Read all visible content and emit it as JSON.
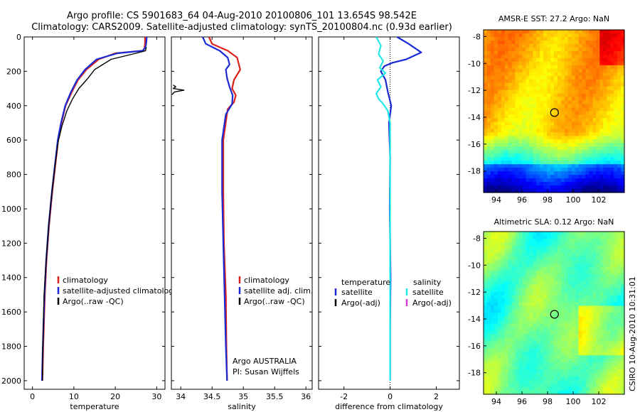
{
  "header": {
    "line1": "Argo profile: CS 5901683_64 04-Aug-2010 20100806_101 13.654S 98.542E",
    "line2": "Climatology: CARS2009. Satellite-adjusted climatology: synTS_20100804.nc (0.93d earlier)"
  },
  "side_label": "CSIRO 10-Aug-2010 10:31:01",
  "colors": {
    "climatology": "#e0211b",
    "satellite": "#1a2bd6",
    "argo": "#000000",
    "satellite_salinity": "#22e8e8",
    "argo_adj_salinity": "#d63cd6"
  },
  "chart_data": [
    {
      "id": "temperature",
      "type": "line",
      "xlabel": "temperature",
      "ylabel": "",
      "xlim": [
        -2,
        32
      ],
      "ylim": [
        2050,
        0
      ],
      "xticks": [
        0,
        10,
        20,
        30
      ],
      "yticks": [
        0,
        200,
        400,
        600,
        800,
        1000,
        1200,
        1400,
        1600,
        1800,
        2000
      ],
      "legend": {
        "placement": "bottom-right",
        "items": [
          "climatology",
          "satellite-adjusted climatology",
          "Argo(..raw -QC)"
        ]
      },
      "series": [
        {
          "name": "climatology",
          "color": "#e0211b",
          "x": [
            27.2,
            27.2,
            27.1,
            26.8,
            20.0,
            16.0,
            13.0,
            11.0,
            9.5,
            8.0,
            7.0,
            6.2,
            5.5,
            4.8,
            4.0,
            3.4,
            3.0,
            2.6,
            2.4
          ],
          "y": [
            0,
            30,
            60,
            80,
            95,
            130,
            190,
            250,
            320,
            400,
            500,
            600,
            750,
            900,
            1100,
            1300,
            1500,
            1800,
            2000
          ]
        },
        {
          "name": "satellite-adjusted climatology",
          "color": "#1a2bd6",
          "x": [
            27.6,
            27.5,
            27.3,
            26.6,
            20.5,
            15.5,
            12.7,
            10.8,
            9.3,
            7.9,
            6.9,
            6.1,
            5.4,
            4.7,
            3.9,
            3.3,
            2.9,
            2.5,
            2.3
          ],
          "y": [
            0,
            30,
            60,
            80,
            95,
            130,
            190,
            250,
            320,
            400,
            500,
            600,
            750,
            900,
            1100,
            1300,
            1500,
            1800,
            2000
          ]
        },
        {
          "name": "Argo(..raw -QC)",
          "color": "#000000",
          "x": [
            27.5,
            27.3,
            25.0,
            19.0,
            15.0,
            13.4,
            11.2,
            9.7,
            8.3,
            7.1,
            6.2,
            5.5,
            4.7,
            3.9,
            3.3,
            2.8,
            2.5,
            2.4
          ],
          "y": [
            60,
            80,
            95,
            130,
            190,
            240,
            300,
            360,
            430,
            520,
            610,
            740,
            900,
            1100,
            1300,
            1500,
            1800,
            2000
          ]
        }
      ]
    },
    {
      "id": "salinity",
      "type": "line",
      "xlabel": "salinity",
      "ylabel": "",
      "xlim": [
        33.85,
        36.1
      ],
      "ylim": [
        2050,
        0
      ],
      "xticks": [
        34,
        34.5,
        35,
        35.5,
        36
      ],
      "legend": {
        "placement": "bottom-right",
        "items": [
          "climatology",
          "satellite adj. clim.",
          "Argo(..raw -QC)"
        ]
      },
      "annotations": [
        "Argo AUSTRALIA",
        "PI: Susan Wijffels"
      ],
      "series": [
        {
          "name": "climatology",
          "color": "#e0211b",
          "x": [
            34.45,
            34.5,
            34.75,
            34.9,
            34.95,
            34.85,
            34.82,
            34.88,
            34.85,
            34.75,
            34.68,
            34.68,
            34.69,
            34.72,
            34.73,
            34.74
          ],
          "y": [
            0,
            40,
            80,
            120,
            190,
            250,
            300,
            340,
            380,
            420,
            600,
            900,
            1200,
            1500,
            1800,
            2000
          ]
        },
        {
          "name": "satellite adj. clim.",
          "color": "#1a2bd6",
          "x": [
            34.35,
            34.4,
            34.62,
            34.75,
            34.78,
            34.72,
            34.74,
            34.78,
            34.83,
            34.82,
            34.72,
            34.66,
            34.66,
            34.68,
            34.7,
            34.72,
            34.74
          ],
          "y": [
            0,
            40,
            80,
            120,
            160,
            190,
            240,
            290,
            340,
            390,
            450,
            600,
            900,
            1200,
            1500,
            1800,
            2000
          ]
        },
        {
          "name": "Argo(..raw -QC)",
          "color": "#000000",
          "x": [
            33.88,
            33.92,
            33.88,
            34.05,
            33.9,
            33.86
          ],
          "y": [
            280,
            290,
            300,
            310,
            320,
            335
          ]
        }
      ]
    },
    {
      "id": "difference",
      "type": "line",
      "xlabel": "difference from climatology",
      "ylabel": "",
      "xlim": [
        -3.1,
        3.0
      ],
      "ylim": [
        2050,
        0
      ],
      "xticks": [
        -2,
        0,
        2
      ],
      "legend": {
        "placement": "bottom",
        "headers": [
          "temperature",
          "salinity"
        ],
        "items": [
          "satellite",
          "Argo(-adj)",
          "satellite",
          "Argo(-adj)"
        ]
      },
      "series": [
        {
          "name": "satellite",
          "group": "temperature",
          "color": "#1a2bd6",
          "x": [
            0.3,
            0.8,
            1.35,
            0.7,
            0.1,
            -0.25,
            -0.4,
            -0.2,
            -0.1,
            0.05,
            -0.05,
            0.0,
            -0.02,
            0.02,
            0.0,
            0.0
          ],
          "y": [
            0,
            40,
            90,
            130,
            150,
            170,
            200,
            250,
            320,
            400,
            500,
            700,
            1000,
            1400,
            1700,
            2000
          ]
        },
        {
          "name": "satellite",
          "group": "salinity",
          "color": "#22e8e8",
          "x": [
            -0.6,
            -0.4,
            -0.5,
            -0.3,
            -0.45,
            -0.2,
            -0.55,
            -0.4,
            -0.6,
            -0.5,
            -0.3,
            -0.1,
            0.0,
            0.0,
            0.0,
            0.0
          ],
          "y": [
            0,
            50,
            100,
            140,
            180,
            210,
            250,
            290,
            330,
            360,
            390,
            430,
            500,
            800,
            1400,
            2000
          ]
        }
      ]
    }
  ],
  "maps": [
    {
      "title": "AMSR-E SST: 27.2 Argo: NaN",
      "xticks": [
        94,
        96,
        98,
        100,
        102
      ],
      "yticks": [
        -8,
        -10,
        -12,
        -14,
        -16,
        -18
      ],
      "xlim": [
        93.0,
        104.0
      ],
      "ylim": [
        -19.6,
        -7.5
      ],
      "marker": {
        "lon": 98.542,
        "lat": -13.654
      },
      "kind": "sst"
    },
    {
      "title": "Altimetric SLA: 0.12 Argo: NaN",
      "xticks": [
        94,
        96,
        98,
        100,
        102
      ],
      "yticks": [
        -8,
        -10,
        -12,
        -14,
        -16,
        -18
      ],
      "xlim": [
        93.0,
        104.0
      ],
      "ylim": [
        -19.6,
        -7.5
      ],
      "marker": {
        "lon": 98.542,
        "lat": -13.654
      },
      "kind": "sla"
    }
  ]
}
